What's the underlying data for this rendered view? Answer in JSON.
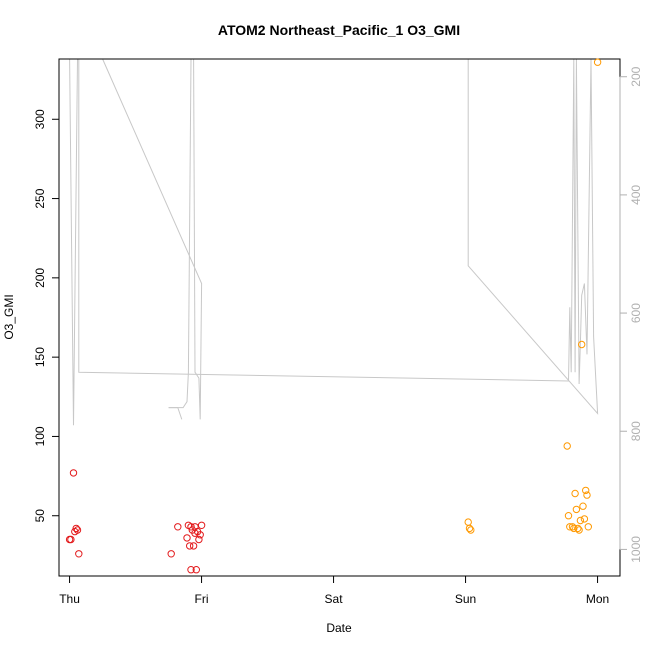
{
  "chart_data": {
    "type": "scatter",
    "title": "ATOM2 Northeast_Pacific_1 O3_GMI",
    "xlabel": "Date",
    "ylabel": "O3_GMI",
    "x_ticks": [
      "Thu",
      "Fri",
      "Sat",
      "Sun",
      "Mon"
    ],
    "x_tick_values": [
      0,
      1,
      2,
      3,
      4
    ],
    "xlim": [
      -0.08,
      4.17
    ],
    "ylim": [
      12,
      338
    ],
    "y_ticks": [
      50,
      100,
      150,
      200,
      250,
      300
    ],
    "right_axis": {
      "label": "",
      "ticks": [
        200,
        400,
        600,
        800,
        1000
      ],
      "lim_top": 170,
      "lim_bottom": 1045,
      "color": "#b0b0b0"
    },
    "series": [
      {
        "color": "#e31a1c",
        "x": [
          0.0,
          0.01,
          0.03,
          0.04,
          0.05,
          0.06,
          0.07,
          0.77,
          0.82,
          0.89,
          0.9,
          0.91,
          0.92,
          0.92,
          0.93,
          0.94,
          0.95,
          0.95,
          0.96,
          0.97,
          0.98,
          0.99,
          1.0
        ],
        "y": [
          35,
          35,
          77,
          40,
          42,
          41,
          26,
          26,
          43,
          36,
          44,
          31,
          16,
          43,
          41,
          31,
          39,
          43,
          16,
          40,
          35,
          38,
          44
        ]
      },
      {
        "color": "#ff9900",
        "x": [
          3.02,
          3.03,
          3.04,
          3.77,
          3.78,
          3.79,
          3.81,
          3.82,
          3.83,
          3.84,
          3.85,
          3.86,
          3.87,
          3.88,
          3.89,
          3.9,
          3.91,
          3.92,
          3.93,
          4.0
        ],
        "y": [
          46,
          42,
          41,
          94,
          50,
          43,
          43,
          42,
          64,
          54,
          42,
          41,
          47,
          158,
          56,
          48,
          66,
          63,
          43,
          336
        ]
      }
    ],
    "pressure_track": {
      "color": "#c8c8c8",
      "segments": [
        [
          [
            0.0,
            170
          ],
          [
            0.03,
            790
          ],
          [
            0.06,
            170
          ],
          [
            0.07,
            170
          ],
          [
            0.07,
            700
          ],
          [
            3.78,
            715
          ],
          [
            3.79,
            590
          ],
          [
            3.8,
            700
          ],
          [
            3.82,
            170
          ],
          [
            3.83,
            700
          ],
          [
            3.84,
            170
          ],
          [
            3.86,
            720
          ],
          [
            3.87,
            650
          ],
          [
            3.88,
            570
          ],
          [
            3.9,
            550
          ],
          [
            3.92,
            670
          ],
          [
            3.95,
            170
          ],
          [
            3.97,
            640
          ],
          [
            4.0,
            770
          ],
          [
            3.02,
            520
          ],
          [
            3.02,
            170
          ]
        ],
        [
          [
            0.25,
            170
          ],
          [
            1.0,
            550
          ],
          [
            0.99,
            780
          ],
          [
            0.98,
            710
          ],
          [
            0.95,
            700
          ],
          [
            0.94,
            170
          ],
          [
            0.92,
            170
          ],
          [
            0.9,
            700
          ],
          [
            0.89,
            750
          ],
          [
            0.86,
            760
          ],
          [
            0.75,
            760
          ]
        ],
        [
          [
            0.75,
            760
          ],
          [
            0.82,
            760
          ],
          [
            0.85,
            780
          ]
        ]
      ]
    }
  }
}
